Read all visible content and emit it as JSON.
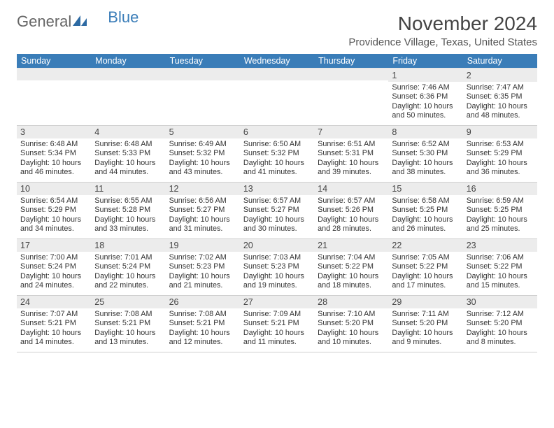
{
  "logo": {
    "word1": "General",
    "word2": "Blue"
  },
  "title": "November 2024",
  "location": "Providence Village, Texas, United States",
  "colors": {
    "header_bg": "#3a7db8",
    "header_text": "#ffffff",
    "daynum_bg": "#ececec",
    "border": "#d0d0d0",
    "body_text": "#333333",
    "logo_gray": "#666666",
    "logo_blue": "#3a7db8"
  },
  "dayNames": [
    "Sunday",
    "Monday",
    "Tuesday",
    "Wednesday",
    "Thursday",
    "Friday",
    "Saturday"
  ],
  "weeks": [
    [
      {
        "n": "",
        "sunrise": "",
        "sunset": "",
        "daylight": ""
      },
      {
        "n": "",
        "sunrise": "",
        "sunset": "",
        "daylight": ""
      },
      {
        "n": "",
        "sunrise": "",
        "sunset": "",
        "daylight": ""
      },
      {
        "n": "",
        "sunrise": "",
        "sunset": "",
        "daylight": ""
      },
      {
        "n": "",
        "sunrise": "",
        "sunset": "",
        "daylight": ""
      },
      {
        "n": "1",
        "sunrise": "Sunrise: 7:46 AM",
        "sunset": "Sunset: 6:36 PM",
        "daylight": "Daylight: 10 hours and 50 minutes."
      },
      {
        "n": "2",
        "sunrise": "Sunrise: 7:47 AM",
        "sunset": "Sunset: 6:35 PM",
        "daylight": "Daylight: 10 hours and 48 minutes."
      }
    ],
    [
      {
        "n": "3",
        "sunrise": "Sunrise: 6:48 AM",
        "sunset": "Sunset: 5:34 PM",
        "daylight": "Daylight: 10 hours and 46 minutes."
      },
      {
        "n": "4",
        "sunrise": "Sunrise: 6:48 AM",
        "sunset": "Sunset: 5:33 PM",
        "daylight": "Daylight: 10 hours and 44 minutes."
      },
      {
        "n": "5",
        "sunrise": "Sunrise: 6:49 AM",
        "sunset": "Sunset: 5:32 PM",
        "daylight": "Daylight: 10 hours and 43 minutes."
      },
      {
        "n": "6",
        "sunrise": "Sunrise: 6:50 AM",
        "sunset": "Sunset: 5:32 PM",
        "daylight": "Daylight: 10 hours and 41 minutes."
      },
      {
        "n": "7",
        "sunrise": "Sunrise: 6:51 AM",
        "sunset": "Sunset: 5:31 PM",
        "daylight": "Daylight: 10 hours and 39 minutes."
      },
      {
        "n": "8",
        "sunrise": "Sunrise: 6:52 AM",
        "sunset": "Sunset: 5:30 PM",
        "daylight": "Daylight: 10 hours and 38 minutes."
      },
      {
        "n": "9",
        "sunrise": "Sunrise: 6:53 AM",
        "sunset": "Sunset: 5:29 PM",
        "daylight": "Daylight: 10 hours and 36 minutes."
      }
    ],
    [
      {
        "n": "10",
        "sunrise": "Sunrise: 6:54 AM",
        "sunset": "Sunset: 5:29 PM",
        "daylight": "Daylight: 10 hours and 34 minutes."
      },
      {
        "n": "11",
        "sunrise": "Sunrise: 6:55 AM",
        "sunset": "Sunset: 5:28 PM",
        "daylight": "Daylight: 10 hours and 33 minutes."
      },
      {
        "n": "12",
        "sunrise": "Sunrise: 6:56 AM",
        "sunset": "Sunset: 5:27 PM",
        "daylight": "Daylight: 10 hours and 31 minutes."
      },
      {
        "n": "13",
        "sunrise": "Sunrise: 6:57 AM",
        "sunset": "Sunset: 5:27 PM",
        "daylight": "Daylight: 10 hours and 30 minutes."
      },
      {
        "n": "14",
        "sunrise": "Sunrise: 6:57 AM",
        "sunset": "Sunset: 5:26 PM",
        "daylight": "Daylight: 10 hours and 28 minutes."
      },
      {
        "n": "15",
        "sunrise": "Sunrise: 6:58 AM",
        "sunset": "Sunset: 5:25 PM",
        "daylight": "Daylight: 10 hours and 26 minutes."
      },
      {
        "n": "16",
        "sunrise": "Sunrise: 6:59 AM",
        "sunset": "Sunset: 5:25 PM",
        "daylight": "Daylight: 10 hours and 25 minutes."
      }
    ],
    [
      {
        "n": "17",
        "sunrise": "Sunrise: 7:00 AM",
        "sunset": "Sunset: 5:24 PM",
        "daylight": "Daylight: 10 hours and 24 minutes."
      },
      {
        "n": "18",
        "sunrise": "Sunrise: 7:01 AM",
        "sunset": "Sunset: 5:24 PM",
        "daylight": "Daylight: 10 hours and 22 minutes."
      },
      {
        "n": "19",
        "sunrise": "Sunrise: 7:02 AM",
        "sunset": "Sunset: 5:23 PM",
        "daylight": "Daylight: 10 hours and 21 minutes."
      },
      {
        "n": "20",
        "sunrise": "Sunrise: 7:03 AM",
        "sunset": "Sunset: 5:23 PM",
        "daylight": "Daylight: 10 hours and 19 minutes."
      },
      {
        "n": "21",
        "sunrise": "Sunrise: 7:04 AM",
        "sunset": "Sunset: 5:22 PM",
        "daylight": "Daylight: 10 hours and 18 minutes."
      },
      {
        "n": "22",
        "sunrise": "Sunrise: 7:05 AM",
        "sunset": "Sunset: 5:22 PM",
        "daylight": "Daylight: 10 hours and 17 minutes."
      },
      {
        "n": "23",
        "sunrise": "Sunrise: 7:06 AM",
        "sunset": "Sunset: 5:22 PM",
        "daylight": "Daylight: 10 hours and 15 minutes."
      }
    ],
    [
      {
        "n": "24",
        "sunrise": "Sunrise: 7:07 AM",
        "sunset": "Sunset: 5:21 PM",
        "daylight": "Daylight: 10 hours and 14 minutes."
      },
      {
        "n": "25",
        "sunrise": "Sunrise: 7:08 AM",
        "sunset": "Sunset: 5:21 PM",
        "daylight": "Daylight: 10 hours and 13 minutes."
      },
      {
        "n": "26",
        "sunrise": "Sunrise: 7:08 AM",
        "sunset": "Sunset: 5:21 PM",
        "daylight": "Daylight: 10 hours and 12 minutes."
      },
      {
        "n": "27",
        "sunrise": "Sunrise: 7:09 AM",
        "sunset": "Sunset: 5:21 PM",
        "daylight": "Daylight: 10 hours and 11 minutes."
      },
      {
        "n": "28",
        "sunrise": "Sunrise: 7:10 AM",
        "sunset": "Sunset: 5:20 PM",
        "daylight": "Daylight: 10 hours and 10 minutes."
      },
      {
        "n": "29",
        "sunrise": "Sunrise: 7:11 AM",
        "sunset": "Sunset: 5:20 PM",
        "daylight": "Daylight: 10 hours and 9 minutes."
      },
      {
        "n": "30",
        "sunrise": "Sunrise: 7:12 AM",
        "sunset": "Sunset: 5:20 PM",
        "daylight": "Daylight: 10 hours and 8 minutes."
      }
    ]
  ]
}
